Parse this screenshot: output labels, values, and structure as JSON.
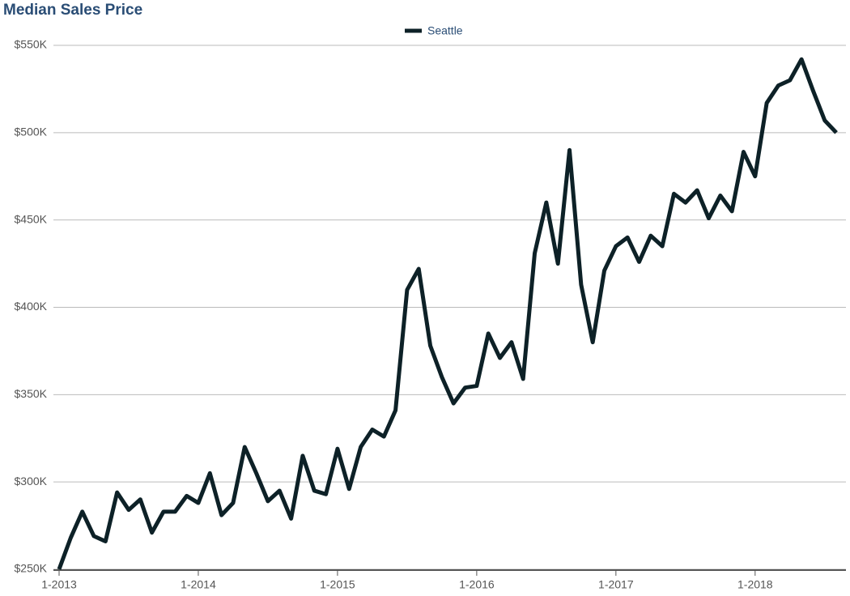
{
  "chart_data": {
    "type": "line",
    "title": "Median Sales Price",
    "categories": [
      "1-2013",
      null,
      null,
      null,
      null,
      null,
      null,
      null,
      null,
      null,
      null,
      null,
      "1-2014",
      null,
      null,
      null,
      null,
      null,
      null,
      null,
      null,
      null,
      null,
      null,
      "1-2015",
      null,
      null,
      null,
      null,
      null,
      null,
      null,
      null,
      null,
      null,
      null,
      "1-2016",
      null,
      null,
      null,
      null,
      null,
      null,
      null,
      null,
      null,
      null,
      null,
      "1-2017",
      null,
      null,
      null,
      null,
      null,
      null,
      null,
      null,
      null,
      null,
      null,
      "1-2018",
      null,
      null,
      null,
      null,
      null,
      null,
      null
    ],
    "series": [
      {
        "name": "Seattle",
        "color": "#0d2127",
        "values": [
          250000,
          268000,
          283000,
          269000,
          266000,
          294000,
          284000,
          290000,
          271000,
          283000,
          283000,
          292000,
          288000,
          305000,
          281000,
          288000,
          320000,
          305000,
          289000,
          295000,
          279000,
          315000,
          295000,
          293000,
          319000,
          296000,
          320000,
          330000,
          326000,
          341000,
          410000,
          422000,
          378000,
          360000,
          345000,
          354000,
          355000,
          385000,
          371000,
          380000,
          359000,
          431000,
          460000,
          425000,
          490000,
          413000,
          380000,
          421000,
          435000,
          440000,
          426000,
          441000,
          435000,
          465000,
          460000,
          467000,
          451000,
          464000,
          455000,
          489000,
          475000,
          517000,
          527000,
          530000,
          542000,
          524000,
          507000,
          500000
        ]
      }
    ],
    "ylim": [
      250000,
      550000
    ],
    "yticks": [
      {
        "value": 250000,
        "label": "$250K"
      },
      {
        "value": 300000,
        "label": "$300K"
      },
      {
        "value": 350000,
        "label": "$350K"
      },
      {
        "value": 400000,
        "label": "$400K"
      },
      {
        "value": 450000,
        "label": "$450K"
      },
      {
        "value": 500000,
        "label": "$500K"
      },
      {
        "value": 550000,
        "label": "$550K"
      }
    ],
    "grid": true,
    "legend": "top"
  }
}
